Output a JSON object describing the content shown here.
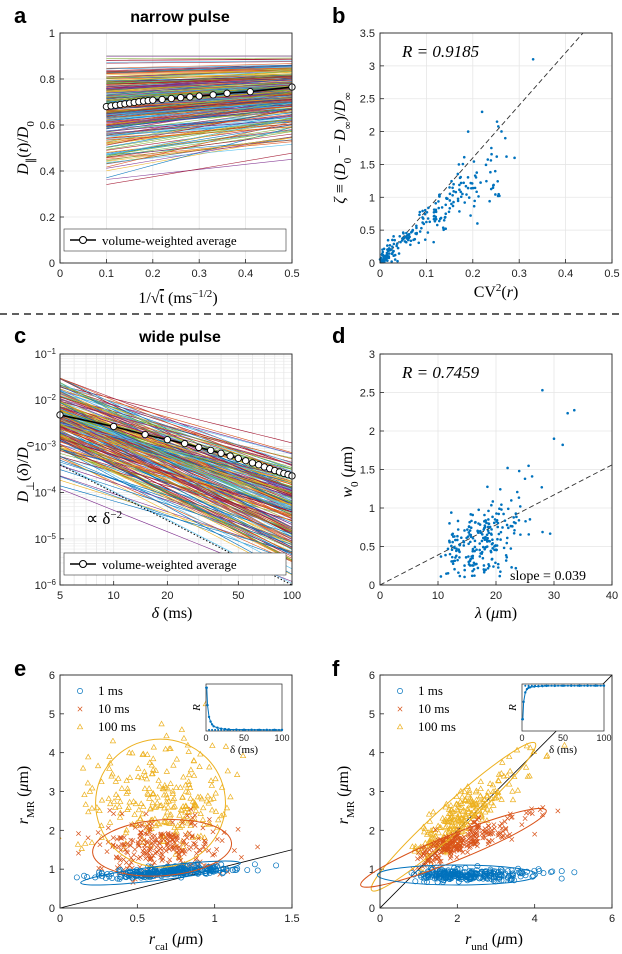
{
  "chart_data": [
    {
      "panel": "a",
      "type": "line",
      "title": "narrow pulse",
      "xlabel": "1/√t (ms^-1/2)",
      "ylabel": "D∥(t)/D0",
      "xlim": [
        0,
        0.5
      ],
      "ylim": [
        0,
        1
      ],
      "xticks": [
        "0",
        "0.1",
        "0.2",
        "0.3",
        "0.4",
        "0.5"
      ],
      "yticks": [
        "0",
        "0.2",
        "0.4",
        "0.6",
        "0.8",
        "1"
      ],
      "grid": true,
      "legend": "bottom-left",
      "series_count_approx": 300,
      "series": [
        {
          "name": "volume-weighted average",
          "x": [
            0.1,
            0.11,
            0.12,
            0.13,
            0.14,
            0.15,
            0.16,
            0.17,
            0.18,
            0.19,
            0.2,
            0.22,
            0.24,
            0.26,
            0.28,
            0.3,
            0.33,
            0.36,
            0.41,
            0.5
          ],
          "y": [
            0.68,
            0.683,
            0.686,
            0.689,
            0.692,
            0.695,
            0.698,
            0.701,
            0.704,
            0.706,
            0.708,
            0.711,
            0.715,
            0.719,
            0.722,
            0.726,
            0.731,
            0.738,
            0.745,
            0.765
          ]
        }
      ]
    },
    {
      "panel": "b",
      "type": "scatter",
      "xlabel": "CV²(r)",
      "ylabel": "ζ ≡ (D0 − D∞)/D∞",
      "xlim": [
        0,
        0.5
      ],
      "ylim": [
        0,
        3.5
      ],
      "xticks": [
        "0",
        "0.1",
        "0.2",
        "0.3",
        "0.4",
        "0.5"
      ],
      "yticks": [
        "0",
        "0.5",
        "1",
        "1.5",
        "2",
        "2.5",
        "3",
        "3.5"
      ],
      "annotation": "R = 0.9185",
      "fit_slope": 8.0,
      "grid": true
    },
    {
      "panel": "c",
      "type": "line",
      "title": "wide pulse",
      "xlabel": "δ (ms)",
      "ylabel": "D⊥(δ)/D0",
      "xscale": "log",
      "yscale": "log",
      "xlim": [
        5,
        100
      ],
      "ylim": [
        1e-06,
        0.1
      ],
      "xticks": [
        "5",
        "10",
        "20",
        "50",
        "100"
      ],
      "yticks": [
        "10-6",
        "10-5",
        "10-4",
        "10-3",
        "10-2",
        "10-1"
      ],
      "annotation": "∝ δ^-2",
      "grid": true,
      "legend": "bottom-left",
      "series": [
        {
          "name": "volume-weighted average",
          "x": [
            5,
            10,
            15,
            20,
            25,
            30,
            35,
            40,
            45,
            50,
            55,
            60,
            65,
            70,
            75,
            80,
            85,
            90,
            95,
            100
          ],
          "y": [
            0.0048,
            0.0027,
            0.0018,
            0.0014,
            0.00115,
            0.00095,
            0.00082,
            0.00071,
            0.00062,
            0.00055,
            0.00049,
            0.00044,
            0.0004,
            0.00036,
            0.00033,
            0.0003,
            0.00028,
            0.00026,
            0.000245,
            0.00023
          ]
        }
      ]
    },
    {
      "panel": "d",
      "type": "scatter",
      "xlabel": "λ (μm)",
      "ylabel": "w0 (μm)",
      "xlim": [
        0,
        40
      ],
      "ylim": [
        0,
        3
      ],
      "xticks": [
        "0",
        "10",
        "20",
        "30",
        "40"
      ],
      "yticks": [
        "0",
        "0.5",
        "1",
        "1.5",
        "2",
        "2.5",
        "3"
      ],
      "annotation": "R = 0.7459",
      "slope_label": "slope = 0.039",
      "fit_slope": 0.039,
      "grid": true
    },
    {
      "panel": "e",
      "type": "scatter",
      "xlabel": "rcal (μm)",
      "ylabel": "rMR (μm)",
      "xlim": [
        0,
        1.5
      ],
      "ylim": [
        0,
        6
      ],
      "xticks": [
        "0",
        "0.5",
        "1",
        "1.5"
      ],
      "yticks": [
        "0",
        "1",
        "2",
        "3",
        "4",
        "5",
        "6"
      ],
      "legend": "top-left",
      "series": [
        {
          "name": "1 ms",
          "color": "#0072BD"
        },
        {
          "name": "10 ms",
          "color": "#D95319"
        },
        {
          "name": "100 ms",
          "color": "#EDB120"
        }
      ],
      "inset": {
        "xlabel": "δ (ms)",
        "ylabel": "R",
        "xlim": [
          0,
          100
        ],
        "ylim": [
          0,
          1
        ],
        "xticks": [
          "0",
          "50",
          "100"
        ],
        "x": [
          1,
          2,
          4,
          6,
          8,
          10,
          15,
          20,
          25,
          30,
          40,
          50,
          60,
          70,
          80,
          90,
          100
        ],
        "y": [
          0.92,
          0.55,
          0.3,
          0.2,
          0.14,
          0.1,
          0.07,
          0.05,
          0.04,
          0.035,
          0.03,
          0.028,
          0.027,
          0.026,
          0.025,
          0.025,
          0.025
        ]
      }
    },
    {
      "panel": "f",
      "type": "scatter",
      "xlabel": "rund (μm)",
      "ylabel": "rMR (μm)",
      "xlim": [
        0,
        6
      ],
      "ylim": [
        0,
        6
      ],
      "xticks": [
        "0",
        "2",
        "4",
        "6"
      ],
      "yticks": [
        "0",
        "1",
        "2",
        "3",
        "4",
        "5",
        "6"
      ],
      "legend": "top-left",
      "series": [
        {
          "name": "1 ms",
          "color": "#0072BD"
        },
        {
          "name": "10 ms",
          "color": "#D95319"
        },
        {
          "name": "100 ms",
          "color": "#EDB120"
        }
      ],
      "inset": {
        "xlabel": "δ (ms)",
        "ylabel": "R",
        "xlim": [
          0,
          100
        ],
        "ylim": [
          0,
          1
        ],
        "xticks": [
          "0",
          "50",
          "100"
        ],
        "x": [
          1,
          2,
          4,
          6,
          8,
          10,
          15,
          20,
          25,
          30,
          40,
          50,
          60,
          70,
          80,
          90,
          100
        ],
        "y": [
          0.25,
          0.62,
          0.82,
          0.89,
          0.92,
          0.93,
          0.945,
          0.95,
          0.955,
          0.96,
          0.96,
          0.962,
          0.963,
          0.963,
          0.964,
          0.964,
          0.964
        ]
      }
    }
  ],
  "text": {
    "letters": {
      "a": "a",
      "b": "b",
      "c": "c",
      "d": "d",
      "e": "e",
      "f": "f"
    },
    "titles": {
      "a": "narrow pulse",
      "c": "wide pulse"
    },
    "ann_b": "R = 0.9185",
    "ann_c": "∝ δ",
    "ann_c_sup": "−2",
    "ann_d": "R = 0.7459",
    "slope_d": "slope = 0.039",
    "legend_avg": "volume-weighted average",
    "legend_1": "1 ms",
    "legend_10": "10 ms",
    "legend_100": "100 ms",
    "inset_x": "δ (ms)",
    "inset_y": "R"
  },
  "colors": {
    "blue": "#0072BD",
    "orange": "#D95319",
    "yellow": "#EDB120",
    "grid": "#e6e6e6",
    "axis": "#262626"
  }
}
